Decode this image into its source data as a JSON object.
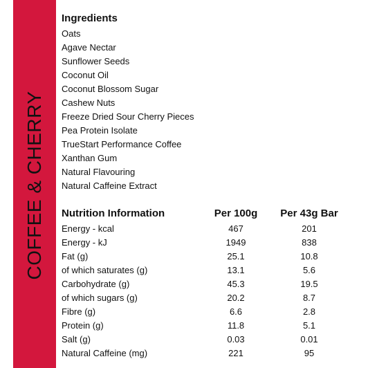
{
  "colors": {
    "band": "#d3173d",
    "text": "#111111",
    "background": "#ffffff"
  },
  "product": {
    "title": "COFFEE & CHERRY"
  },
  "ingredients": {
    "heading": "Ingredients",
    "items": [
      "Oats",
      "Agave Nectar",
      "Sunflower Seeds",
      "Coconut Oil",
      "Coconut Blossom Sugar",
      "Cashew Nuts",
      "Freeze Dried Sour Cherry Pieces",
      "Pea Protein Isolate",
      "TrueStart Performance Coffee",
      "Xanthan Gum",
      "Natural Flavouring",
      "Natural Caffeine Extract"
    ]
  },
  "nutrition": {
    "headers": [
      "Nutrition Information",
      "Per 100g",
      "Per 43g Bar"
    ],
    "rows": [
      [
        "Energy - kcal",
        "467",
        "201"
      ],
      [
        "Energy - kJ",
        "1949",
        "838"
      ],
      [
        "Fat (g)",
        "25.1",
        "10.8"
      ],
      [
        "of which saturates (g)",
        "13.1",
        "5.6"
      ],
      [
        "Carbohydrate (g)",
        "45.3",
        "19.5"
      ],
      [
        "of which sugars (g)",
        "20.2",
        "8.7"
      ],
      [
        "Fibre (g)",
        "6.6",
        "2.8"
      ],
      [
        "Protein (g)",
        "11.8",
        "5.1"
      ],
      [
        "Salt (g)",
        "0.03",
        "0.01"
      ],
      [
        "Natural Caffeine (mg)",
        "221",
        "95"
      ]
    ]
  }
}
